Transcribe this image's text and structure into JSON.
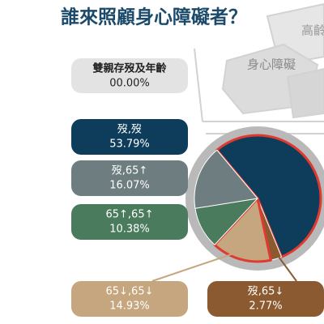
{
  "chart_data": {
    "type": "pie",
    "title": "誰來照顧身心障礙者？",
    "summary_label": "雙親存歿及年齡",
    "summary_value": "00.00%",
    "illustration_labels": [
      "高齡",
      "身心障礙"
    ],
    "categories": [
      "歿,歿",
      "歿,65↓",
      "65↓,65↓",
      "65↑,65↑",
      "歿,65↑"
    ],
    "values": [
      53.79,
      2.77,
      14.93,
      10.38,
      16.07
    ],
    "value_labels": [
      "53.79%",
      "2.77%",
      "14.93%",
      "10.38%",
      "16.07%"
    ],
    "colors": [
      "#0e3d5c",
      "#8b5a30",
      "#c5a67e",
      "#4b7b5d",
      "#6d7d80"
    ],
    "highlighted": [
      0,
      2
    ]
  }
}
